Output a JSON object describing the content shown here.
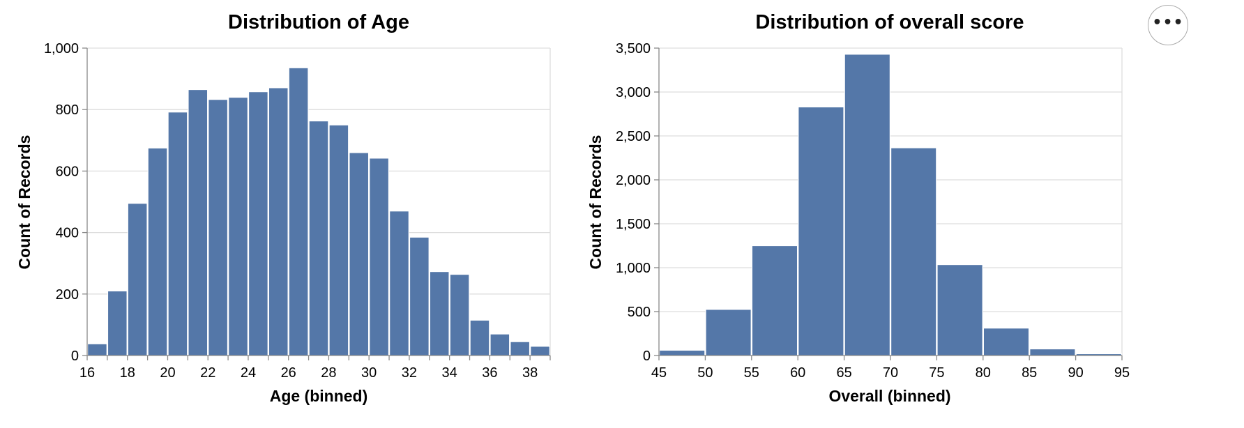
{
  "menu": {
    "icon": "ellipsis-icon",
    "label": "•••"
  },
  "colors": {
    "bar": "#5477a8",
    "grid": "#dddddd",
    "axis": "#888888"
  },
  "chart_data": [
    {
      "type": "bar",
      "title": "Distribution of Age",
      "xlabel": "Age (binned)",
      "ylabel": "Count of Records",
      "bin_step": 1,
      "bin_starts": [
        16,
        17,
        18,
        19,
        20,
        21,
        22,
        23,
        24,
        25,
        26,
        27,
        28,
        29,
        30,
        31,
        32,
        33,
        34,
        35,
        36,
        37,
        38
      ],
      "values": [
        38,
        210,
        495,
        675,
        792,
        865,
        833,
        840,
        858,
        871,
        936,
        763,
        750,
        660,
        642,
        470,
        385,
        273,
        264,
        115,
        70,
        45,
        30
      ],
      "xlim": [
        16,
        39
      ],
      "ylim": [
        0,
        1000
      ],
      "x_ticks": [
        16,
        18,
        20,
        22,
        24,
        26,
        28,
        30,
        32,
        34,
        36,
        38
      ],
      "x_tick_labels": [
        "16",
        "18",
        "20",
        "22",
        "24",
        "26",
        "28",
        "30",
        "32",
        "34",
        "36",
        "38"
      ],
      "y_ticks": [
        0,
        200,
        400,
        600,
        800,
        1000
      ],
      "y_tick_labels": [
        "0",
        "200",
        "400",
        "600",
        "800",
        "1,000"
      ],
      "grid": true
    },
    {
      "type": "bar",
      "title": "Distribution of overall score",
      "xlabel": "Overall (binned)",
      "ylabel": "Count of Records",
      "bin_step": 5,
      "bin_starts": [
        45,
        50,
        55,
        60,
        65,
        70,
        75,
        80,
        85,
        90
      ],
      "values": [
        60,
        525,
        1250,
        2830,
        3430,
        2365,
        1035,
        312,
        75,
        20
      ],
      "xlim": [
        45,
        95
      ],
      "ylim": [
        0,
        3500
      ],
      "x_ticks": [
        45,
        50,
        55,
        60,
        65,
        70,
        75,
        80,
        85,
        90,
        95
      ],
      "x_tick_labels": [
        "45",
        "50",
        "55",
        "60",
        "65",
        "70",
        "75",
        "80",
        "85",
        "90",
        "95"
      ],
      "y_ticks": [
        0,
        500,
        1000,
        1500,
        2000,
        2500,
        3000,
        3500
      ],
      "y_tick_labels": [
        "0",
        "500",
        "1,000",
        "1,500",
        "2,000",
        "2,500",
        "3,000",
        "3,500"
      ],
      "grid": true
    }
  ]
}
